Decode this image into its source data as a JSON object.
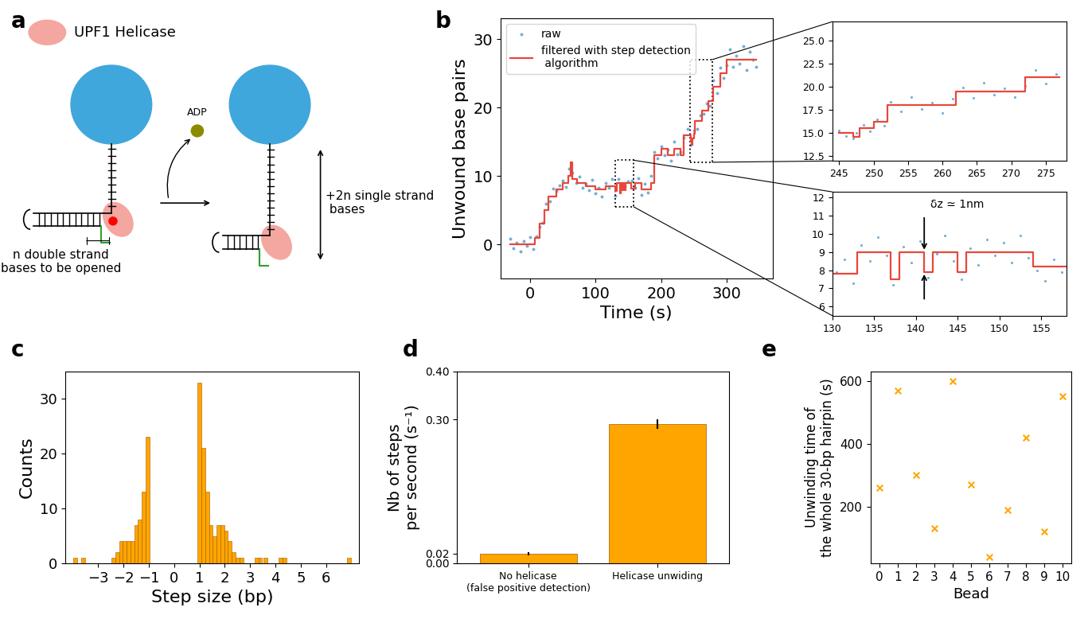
{
  "panel_labels": [
    "a",
    "b",
    "c",
    "d",
    "e"
  ],
  "diagram": {
    "legend_label": "UPF1 Helicase",
    "released": "ADP",
    "left_caption": "n double strand\nbases to be opened",
    "right_caption": "+2n single strand\n bases"
  },
  "chart_data": [
    {
      "type": "line",
      "xlabel": "Time (s)",
      "ylabel": "Unwound base pairs",
      "xlim": [
        -45,
        370
      ],
      "ylim": [
        -5,
        33
      ],
      "xticks": [
        0,
        100,
        200,
        300
      ],
      "yticks": [
        0,
        10,
        20,
        30
      ],
      "legend": "upper left",
      "series": [
        {
          "name": "raw",
          "type": "scatter",
          "color": "#1f77b4",
          "marker": "o",
          "x": [
            -30,
            -25,
            -20,
            -15,
            -10,
            -5,
            0,
            5,
            10,
            15,
            20,
            25,
            30,
            35,
            40,
            45,
            50,
            55,
            60,
            65,
            70,
            75,
            80,
            85,
            90,
            95,
            100,
            105,
            110,
            115,
            120,
            125,
            130,
            135,
            140,
            145,
            150,
            155,
            160,
            165,
            170,
            175,
            180,
            185,
            190,
            195,
            200,
            205,
            210,
            215,
            220,
            225,
            230,
            235,
            240,
            245,
            250,
            255,
            260,
            265,
            270,
            275,
            280,
            285,
            290,
            295,
            300,
            305,
            310,
            315,
            320,
            325,
            330,
            335,
            340,
            345
          ],
          "values": [
            0.8,
            -0.6,
            0.3,
            -1.0,
            0.5,
            -0.2,
            1.1,
            -0.7,
            1.2,
            2.6,
            3.2,
            5.9,
            6.3,
            8.1,
            7.8,
            8.6,
            9.3,
            8.4,
            11.1,
            10.5,
            9.0,
            9.9,
            8.3,
            8.8,
            7.9,
            9.4,
            7.4,
            8.3,
            7.0,
            9.0,
            8.3,
            9.6,
            7.1,
            9.5,
            8.6,
            8.5,
            9.2,
            9.3,
            8.3,
            9.7,
            7.2,
            8.8,
            7.6,
            10.0,
            13.5,
            12.6,
            14.3,
            13.0,
            13.9,
            12.2,
            15.0,
            13.1,
            13.5,
            15.6,
            16.9,
            14.6,
            16.7,
            16.9,
            18.8,
            19.1,
            20.6,
            20.2,
            24.0,
            22.1,
            25.8,
            24.3,
            26.2,
            28.5,
            25.9,
            27.6,
            26.4,
            29.0,
            25.5,
            28.1,
            27.0,
            26.0
          ]
        },
        {
          "name": "filtered with step detection\n algorithm",
          "type": "step",
          "color": "#e8473b",
          "line_style": "solid",
          "x": [
            -30,
            8,
            15,
            22,
            28,
            40,
            50,
            58,
            62,
            65,
            72,
            85,
            100,
            115,
            130,
            133,
            137,
            138,
            141,
            142,
            145,
            146,
            154,
            160,
            170,
            185,
            190,
            200,
            210,
            220,
            230,
            235,
            245,
            247,
            248,
            250,
            252,
            262,
            272,
            280,
            290,
            300,
            345
          ],
          "values": [
            0,
            1,
            3,
            5,
            7,
            8,
            9,
            10,
            12,
            9.5,
            9,
            8.5,
            8,
            8.5,
            7.8,
            9,
            7.5,
            9,
            7.9,
            9,
            7.9,
            9,
            8.2,
            9,
            8,
            9,
            13,
            14,
            13,
            14,
            13,
            16,
            15,
            14.6,
            15.5,
            16.2,
            18,
            19.5,
            21,
            23,
            25,
            27,
            27
          ]
        }
      ]
    },
    {
      "type": "line",
      "xlim": [
        244,
        278
      ],
      "ylim": [
        12,
        27
      ],
      "xticks": [
        245,
        250,
        255,
        260,
        265,
        270,
        275
      ],
      "yticks": [
        {
          "value": 12.5,
          "label": "12.5"
        },
        {
          "value": 15,
          "label": "15.0"
        },
        {
          "value": 17.5,
          "label": "17.5"
        },
        {
          "value": 20,
          "label": "20.0"
        },
        {
          "value": 22.5,
          "label": "22.5"
        },
        {
          "value": 25,
          "label": "25.0"
        }
      ],
      "series": [
        {
          "type": "scatter",
          "color": "#1f77b4",
          "marker": "o",
          "x": [
            245,
            246,
            247,
            247.5,
            248.5,
            249.5,
            250.5,
            251.5,
            252.5,
            254,
            255.5,
            257,
            258.5,
            260,
            261.5,
            263,
            264.5,
            266,
            267.5,
            269,
            270.5,
            272,
            273.5,
            275,
            276.5
          ],
          "values": [
            15.3,
            14.7,
            14.4,
            15.0,
            15.9,
            15.2,
            16.5,
            15.8,
            18.4,
            17.3,
            18.9,
            17.6,
            18.3,
            17.2,
            18.7,
            19.9,
            18.8,
            20.4,
            19.1,
            19.8,
            18.9,
            20.1,
            21.8,
            20.3,
            21.4
          ]
        },
        {
          "type": "step",
          "color": "#e8473b",
          "line_style": "solid",
          "x": [
            245,
            247,
            248,
            250,
            252,
            262,
            272,
            277
          ],
          "values": [
            15,
            14.6,
            15.5,
            16.2,
            18,
            19.5,
            21,
            21
          ]
        }
      ]
    },
    {
      "type": "line",
      "xlim": [
        130,
        158
      ],
      "ylim": [
        5.5,
        12.3
      ],
      "xticks": [
        130,
        135,
        140,
        145,
        150,
        155
      ],
      "yticks": [
        6,
        7,
        8,
        9,
        10,
        11,
        12
      ],
      "annotations": [
        "δz ≃ 1nm"
      ],
      "series": [
        {
          "type": "scatter",
          "color": "#1f77b4",
          "marker": "o",
          "x": [
            130.5,
            131.5,
            132.5,
            133.5,
            134.5,
            135.5,
            136.5,
            137.3,
            138.5,
            139.5,
            140.5,
            141.5,
            142.5,
            143.5,
            144.5,
            145.5,
            146.5,
            147.5,
            148.5,
            149.5,
            150.5,
            151.5,
            152.5,
            153.5,
            154.5,
            155.5,
            156.5,
            157.5
          ],
          "values": [
            7.9,
            8.6,
            7.3,
            9.4,
            8.5,
            9.8,
            8.8,
            7.2,
            9.3,
            8.4,
            9.6,
            7.6,
            8.9,
            9.9,
            8.5,
            7.5,
            9.2,
            8.3,
            9.7,
            8.8,
            9.5,
            8.4,
            9.9,
            8.7,
            8.0,
            7.4,
            8.6,
            7.9
          ]
        },
        {
          "type": "step",
          "color": "#e8473b",
          "line_style": "solid",
          "x": [
            130,
            133,
            137,
            138,
            141,
            142,
            145,
            146,
            154,
            158
          ],
          "values": [
            7.8,
            9,
            7.5,
            9,
            7.9,
            9,
            7.9,
            9,
            8.2,
            8.2
          ]
        }
      ]
    },
    {
      "type": "bar",
      "xlabel": "Step size (bp)",
      "ylabel": "Counts",
      "color": "#ffa500",
      "xlim": [
        -4.3,
        7.3
      ],
      "ylim": [
        0,
        35
      ],
      "xticks": [
        {
          "value": -3,
          "label": "−3"
        },
        {
          "value": -2,
          "label": "−2"
        },
        {
          "value": -1,
          "label": "−1"
        },
        0,
        1,
        2,
        3,
        4,
        5,
        6
      ],
      "yticks": [
        0,
        10,
        20,
        30
      ],
      "x": [
        -3.9,
        -3.6,
        -2.4,
        -2.25,
        -2.1,
        -1.95,
        -1.8,
        -1.65,
        -1.5,
        -1.35,
        -1.2,
        -1.05,
        1.0,
        1.15,
        1.3,
        1.45,
        1.6,
        1.75,
        1.9,
        2.05,
        2.2,
        2.35,
        2.5,
        2.65,
        3.25,
        3.4,
        3.6,
        4.2,
        4.35,
        6.9
      ],
      "values": [
        1,
        1,
        1,
        2,
        4,
        4,
        4,
        4,
        7,
        8,
        13,
        23,
        33,
        21,
        13,
        7,
        5,
        7,
        7,
        6,
        4,
        2,
        1,
        1,
        1,
        1,
        1,
        1,
        1,
        1
      ]
    },
    {
      "type": "bar",
      "ylabel": "Nb of steps\nper second (s⁻¹)",
      "color": "#ffa500",
      "categories": [
        "No helicase\n(false positive detection)",
        "Helicase unwiding"
      ],
      "values": [
        0.02,
        0.29
      ],
      "errors": [
        0.003,
        0.01
      ],
      "ylim": [
        0,
        0.4
      ],
      "yticks": [
        {
          "value": 0.0,
          "label": "0.00"
        },
        {
          "value": 0.02,
          "label": "0.02"
        },
        {
          "value": 0.3,
          "label": "0.30"
        },
        {
          "value": 0.4,
          "label": "0.40"
        }
      ]
    },
    {
      "type": "scatter",
      "xlabel": "Bead",
      "ylabel": "Unwinding time of\nthe whole 30-bp hairpin (s)",
      "color": "#ffa500",
      "marker": "x",
      "x": [
        0,
        1,
        2,
        3,
        4,
        5,
        6,
        7,
        8,
        9,
        10
      ],
      "values": [
        260,
        570,
        300,
        130,
        600,
        270,
        40,
        190,
        420,
        120,
        550
      ],
      "xlim": [
        -0.5,
        10.5
      ],
      "ylim": [
        20,
        630
      ],
      "xticks": [
        0,
        1,
        2,
        3,
        4,
        5,
        6,
        7,
        8,
        9,
        10
      ],
      "yticks": [
        200,
        400,
        600
      ]
    }
  ]
}
